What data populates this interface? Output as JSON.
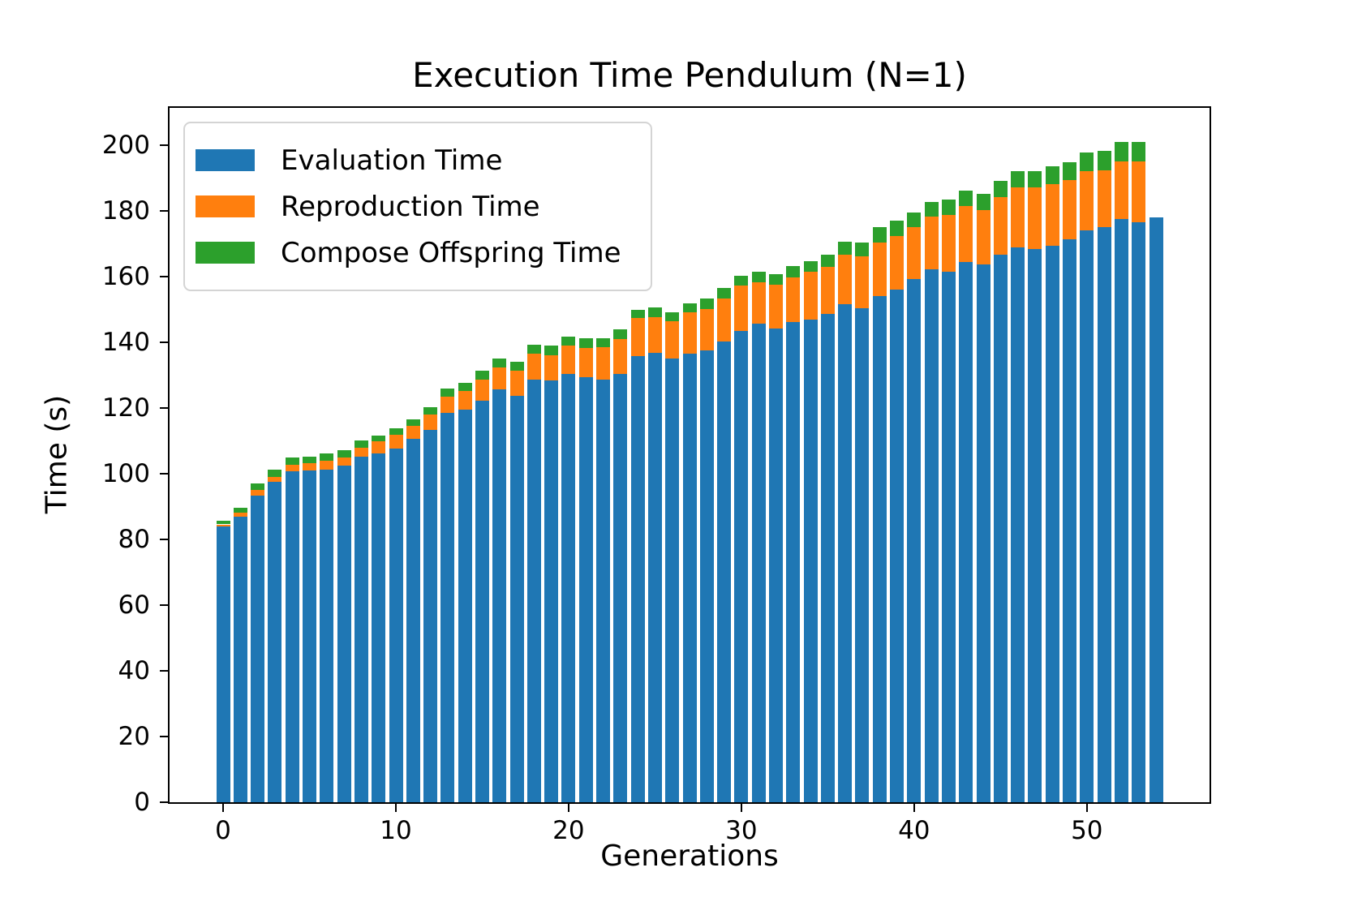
{
  "title": "Execution Time Pendulum (N=1)",
  "chart_data": {
    "type": "bar",
    "stacked": true,
    "title": "Execution Time Pendulum (N=1)",
    "xlabel": "Generations",
    "ylabel": "Time (s)",
    "grid": false,
    "legend_position": "upper left",
    "bar_width": 0.8,
    "xlim": [
      -3.1,
      57.1
    ],
    "ylim": [
      0,
      211.4
    ],
    "xticks": [
      0,
      10,
      20,
      30,
      40,
      50
    ],
    "yticks": [
      0,
      20,
      40,
      60,
      80,
      100,
      120,
      140,
      160,
      180,
      200
    ],
    "x": [
      0,
      1,
      2,
      3,
      4,
      5,
      6,
      7,
      8,
      9,
      10,
      11,
      12,
      13,
      14,
      15,
      16,
      17,
      18,
      19,
      20,
      21,
      22,
      23,
      24,
      25,
      26,
      27,
      28,
      29,
      30,
      31,
      32,
      33,
      34,
      35,
      36,
      37,
      38,
      39,
      40,
      41,
      42,
      43,
      44,
      45,
      46,
      47,
      48,
      49,
      50,
      51,
      52,
      53,
      54
    ],
    "series": [
      {
        "name": "Evaluation Time",
        "color": "#1f77b4",
        "values": [
          83.9,
          86.9,
          93.3,
          97.5,
          100.7,
          100.9,
          101.2,
          102.5,
          105.3,
          106.1,
          107.6,
          110.6,
          113.3,
          118.6,
          119.5,
          122.3,
          125.6,
          123.8,
          128.7,
          128.5,
          130.4,
          129.3,
          128.6,
          130.5,
          135.9,
          136.8,
          135.1,
          136.5,
          137.6,
          140.4,
          143.4,
          145.6,
          144.3,
          146.2,
          147.0,
          148.6,
          151.6,
          150.4,
          154.2,
          156.0,
          159.4,
          162.2,
          161.6,
          164.4,
          163.7,
          166.8,
          168.9,
          168.4,
          169.5,
          171.5,
          174.2,
          175.2,
          177.5,
          176.7,
          178.1
        ]
      },
      {
        "name": "Reproduction Time",
        "color": "#ff7f0e",
        "values": [
          0.7,
          1.3,
          1.8,
          1.6,
          2.1,
          2.3,
          2.7,
          2.4,
          2.6,
          3.7,
          4.3,
          4.0,
          4.7,
          4.8,
          5.7,
          6.4,
          6.8,
          7.6,
          8.0,
          7.6,
          8.6,
          9.1,
          10.0,
          10.6,
          11.6,
          10.9,
          11.3,
          12.8,
          12.5,
          13.0,
          13.9,
          12.7,
          13.2,
          13.6,
          14.6,
          14.5,
          15.1,
          15.8,
          16.2,
          16.3,
          15.7,
          16.2,
          17.3,
          17.2,
          16.6,
          17.4,
          18.4,
          18.8,
          18.7,
          17.9,
          17.9,
          17.3,
          17.6,
          18.4,
          0
        ]
      },
      {
        "name": "Compose Offspring Time",
        "color": "#2ca02c",
        "values": [
          1.0,
          1.4,
          1.9,
          2.1,
          2.2,
          2.1,
          2.2,
          2.3,
          2.3,
          1.8,
          2.0,
          2.0,
          2.2,
          2.6,
          2.5,
          2.7,
          2.7,
          2.7,
          2.6,
          2.9,
          2.9,
          2.9,
          2.7,
          2.8,
          2.5,
          2.9,
          2.7,
          2.6,
          3.3,
          3.3,
          2.9,
          3.1,
          3.3,
          3.5,
          3.2,
          3.7,
          4.0,
          4.3,
          4.6,
          4.7,
          4.4,
          4.4,
          4.7,
          4.7,
          5.0,
          4.9,
          4.8,
          4.9,
          5.3,
          5.5,
          5.6,
          5.8,
          5.9,
          5.9,
          0
        ]
      }
    ]
  }
}
